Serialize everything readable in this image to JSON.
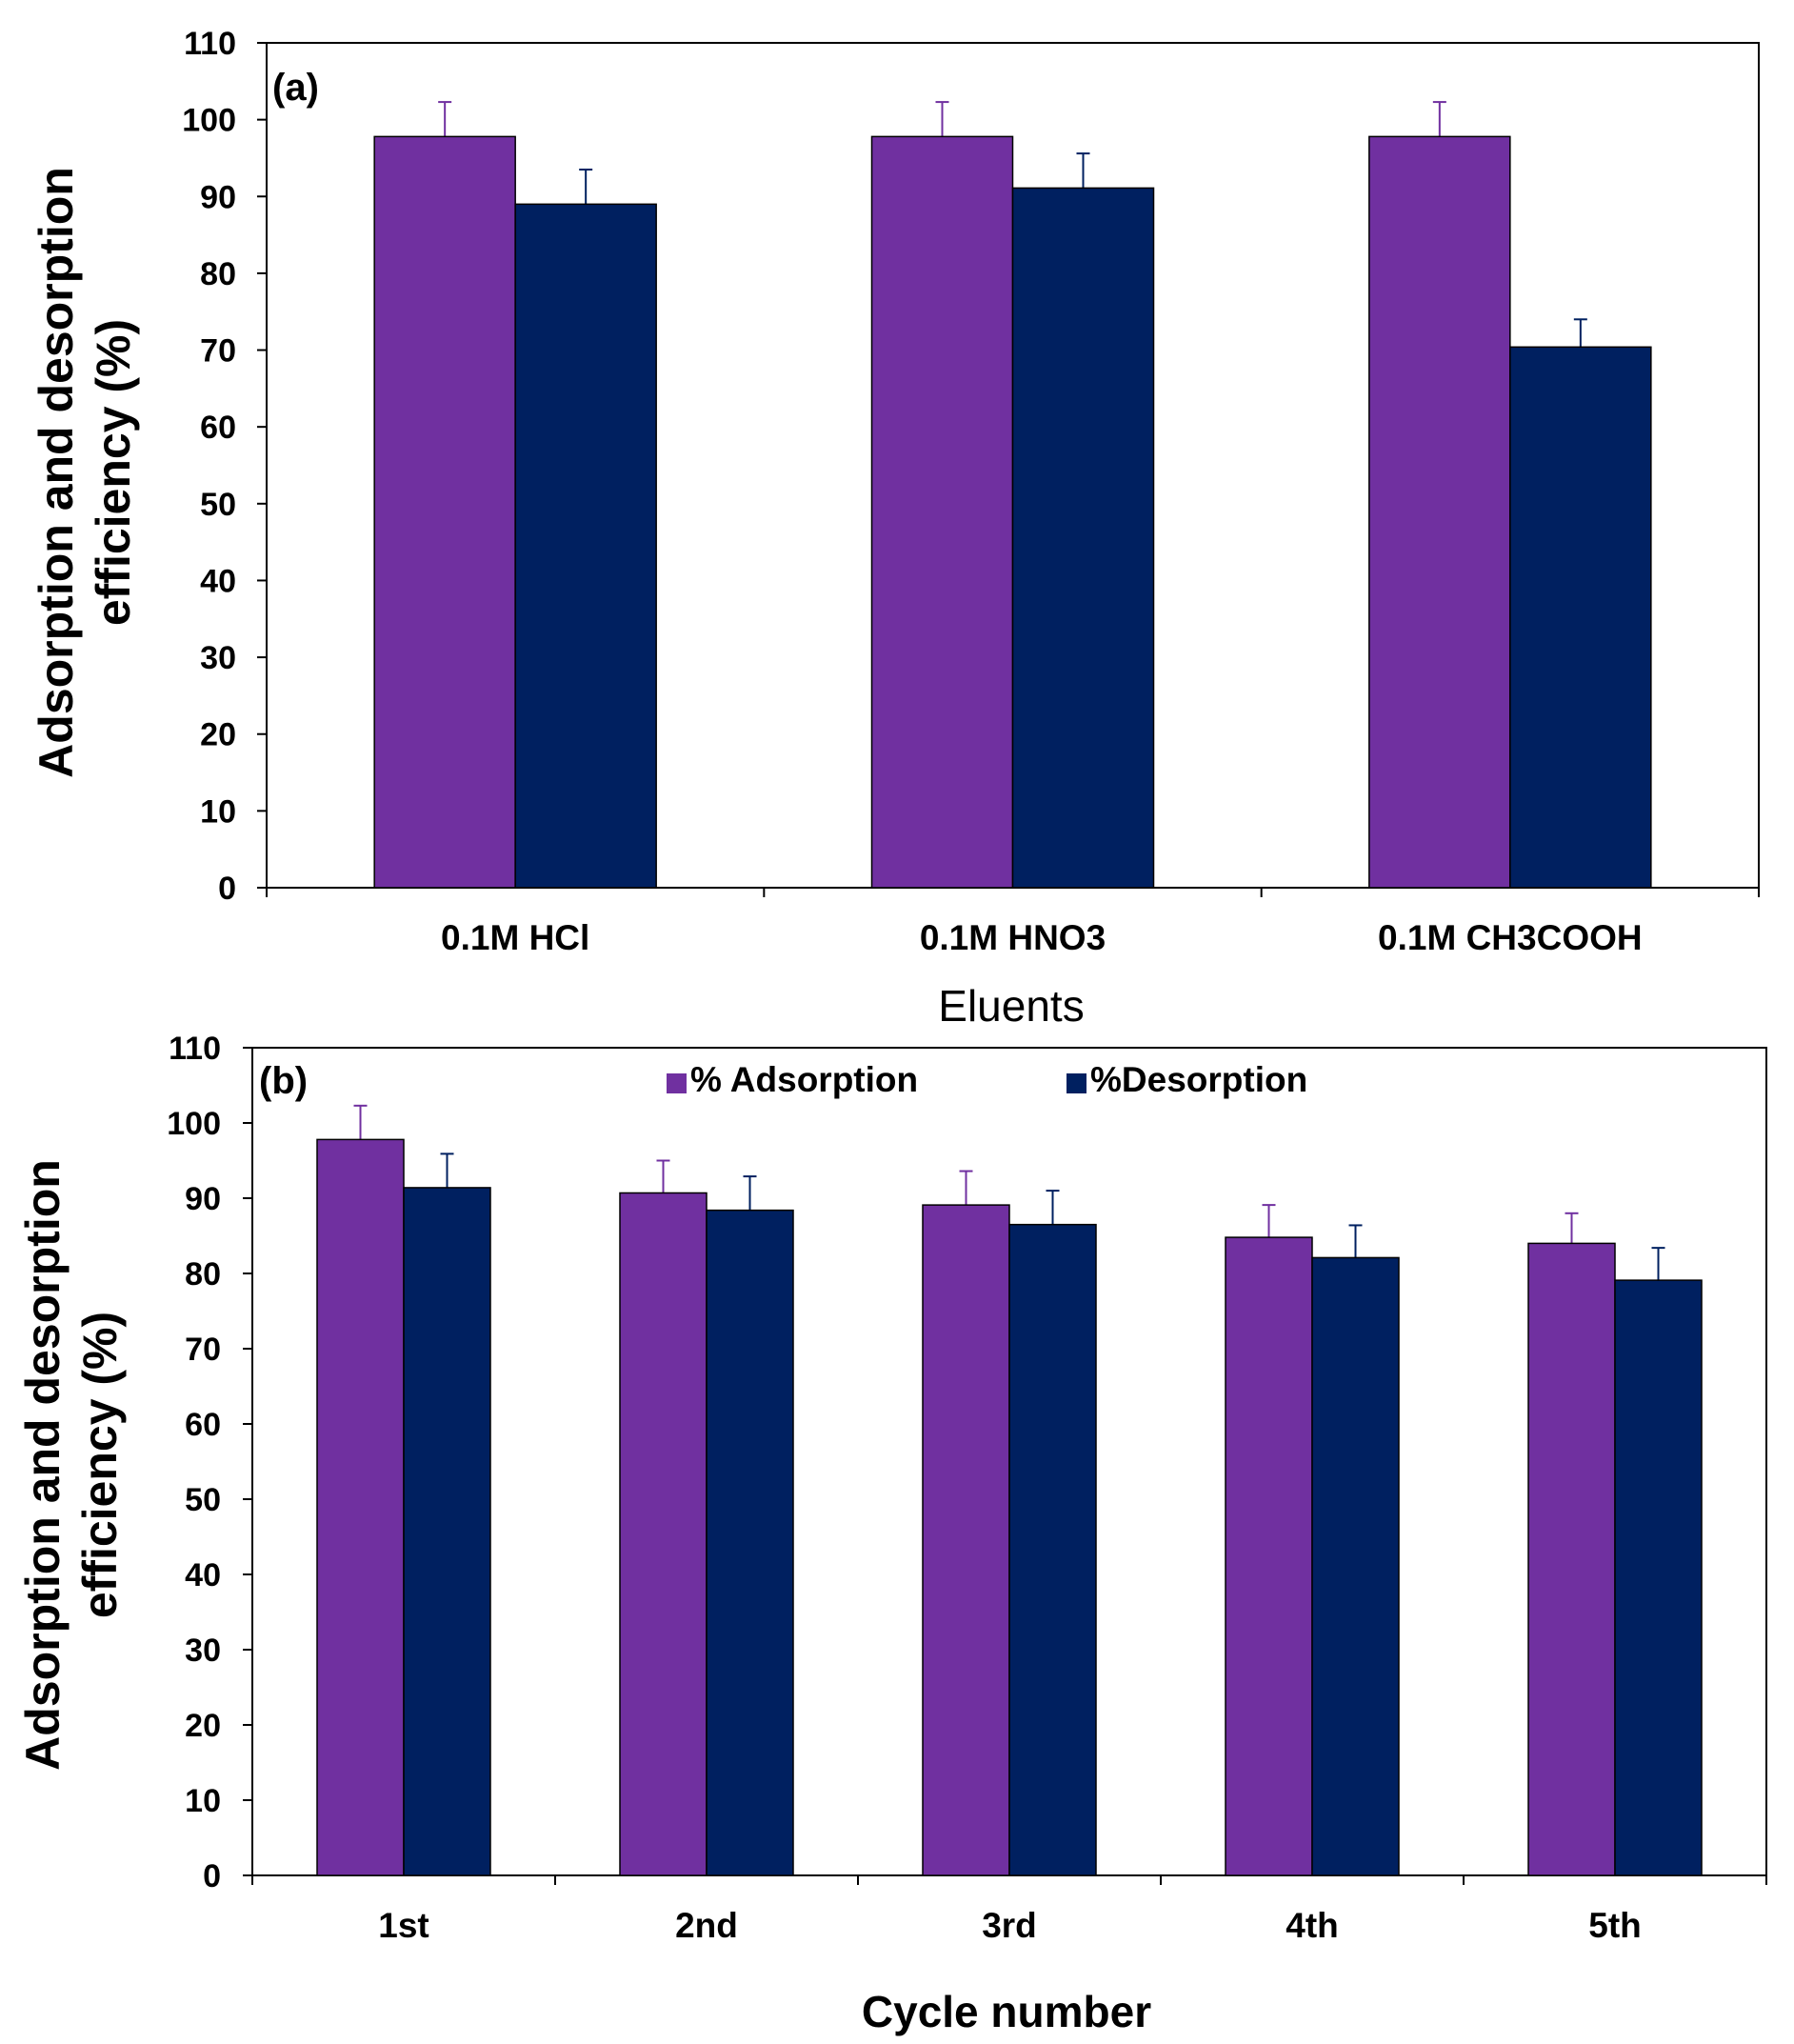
{
  "chart_data": [
    {
      "type": "bar",
      "panel_label": "(a)",
      "categories": [
        "0.1M HCl",
        "0.1M HNO3",
        "0.1M CH3COOH"
      ],
      "series": [
        {
          "name": "% Adsorption",
          "color": "#7030a0",
          "values": [
            97.8,
            97.8,
            97.8
          ],
          "errors": [
            4.5,
            4.5,
            4.5
          ]
        },
        {
          "name": "%Desorption",
          "color": "#002060",
          "values": [
            89.0,
            91.1,
            70.4
          ],
          "errors": [
            4.5,
            4.5,
            3.6
          ]
        }
      ],
      "xlabel": "Eluents",
      "ylabel_line1": "Adsorption and desorption",
      "ylabel_line2": "efficiency (%)",
      "ylim": [
        0,
        110
      ],
      "yticks": [
        0,
        10,
        20,
        30,
        40,
        50,
        60,
        70,
        80,
        90,
        100,
        110
      ],
      "grid": false,
      "legend": "none"
    },
    {
      "type": "bar",
      "panel_label": "(b)",
      "categories": [
        "1st",
        "2nd",
        "3rd",
        "4th",
        "5th"
      ],
      "series": [
        {
          "name": "% Adsorption",
          "color": "#7030a0",
          "values": [
            97.8,
            90.7,
            89.1,
            84.8,
            84.0
          ],
          "errors": [
            4.5,
            4.3,
            4.5,
            4.3,
            4.0
          ]
        },
        {
          "name": "%Desorption",
          "color": "#002060",
          "values": [
            91.4,
            88.4,
            86.5,
            82.1,
            79.1
          ],
          "errors": [
            4.5,
            4.5,
            4.5,
            4.3,
            4.3
          ]
        }
      ],
      "xlabel": "Cycle number",
      "ylabel_line1": "Adsorption and desorption",
      "ylabel_line2": "efficiency (%)",
      "ylim": [
        0,
        110
      ],
      "yticks": [
        0,
        10,
        20,
        30,
        40,
        50,
        60,
        70,
        80,
        90,
        100,
        110
      ],
      "grid": false,
      "legend": "top-center"
    }
  ]
}
